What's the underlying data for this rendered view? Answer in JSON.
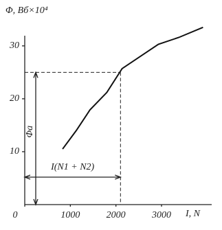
{
  "chart_data": {
    "type": "line",
    "y_axis_label": "Φ, Вб×10⁴",
    "x_axis_label": "I, N",
    "x": [
      830,
      1130,
      1430,
      1800,
      2135,
      2480,
      2930,
      3380,
      3910
    ],
    "series": [
      {
        "color": "#111111",
        "values": [
          10.5,
          14.0,
          17.9,
          21.2,
          25.7,
          27.7,
          30.3,
          31.6,
          33.5
        ]
      }
    ],
    "xlim": [
      0,
      4100
    ],
    "ylim": [
      0,
      34
    ],
    "xticks": [
      0,
      1000,
      2000,
      3000
    ],
    "yticks": [
      10,
      20,
      30
    ],
    "guide": {
      "x": 2100,
      "y": 25
    },
    "annotations": [
      "Φa",
      "I(N1 + N2)"
    ]
  }
}
